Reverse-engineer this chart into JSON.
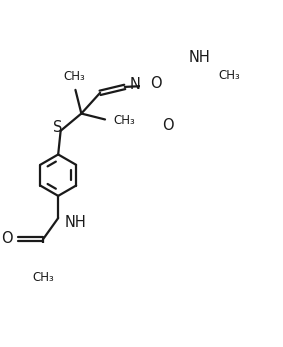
{
  "bg_color": "#ffffff",
  "line_color": "#1a1a1a",
  "line_width": 1.6,
  "font_size": 9.5,
  "figsize": [
    2.83,
    3.47
  ],
  "dpi": 100,
  "xlim": [
    0,
    283
  ],
  "ylim": [
    0,
    347
  ]
}
